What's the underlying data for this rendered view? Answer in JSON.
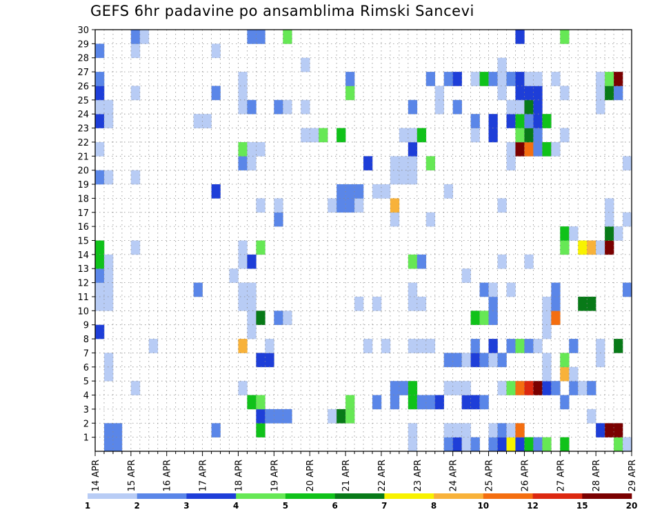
{
  "chart_data": {
    "type": "heatmap",
    "title": "GEFS 6hr padavine po ansamblima Rimski Sancevi",
    "xlabel": "",
    "ylabel": "",
    "x_tick_labels": [
      "14 APR",
      "15 APR",
      "16 APR",
      "17 APR",
      "18 APR",
      "19 APR",
      "20 APR",
      "21 APR",
      "22 APR",
      "23 APR",
      "24 APR",
      "25 APR",
      "26 APR",
      "27 APR",
      "28 APR",
      "29 APR"
    ],
    "y_tick_labels": [
      "1",
      "2",
      "3",
      "4",
      "5",
      "6",
      "7",
      "8",
      "9",
      "10",
      "11",
      "12",
      "13",
      "14",
      "15",
      "16",
      "17",
      "18",
      "19",
      "20",
      "21",
      "22",
      "23",
      "24",
      "25",
      "26",
      "27",
      "28",
      "29",
      "30"
    ],
    "xlim": [
      0,
      60
    ],
    "ylim": [
      0,
      30
    ],
    "grid": true,
    "legend_position": "bottom",
    "colorbar": {
      "colors": [
        "#b8ccf5",
        "#5a86e8",
        "#1e3ed8",
        "#66e855",
        "#10c21a",
        "#087a18",
        "#f8f200",
        "#f8b23a",
        "#f46e10",
        "#dc2810",
        "#7a0000"
      ],
      "labels": [
        "1",
        "2",
        "3",
        "4",
        "5",
        "6",
        "7",
        "8",
        "10",
        "12",
        "15",
        "20"
      ]
    },
    "cells": [
      [
        0,
        8,
        "3"
      ],
      [
        0,
        10,
        "1"
      ],
      [
        0,
        11,
        "1"
      ],
      [
        0,
        12,
        "2"
      ],
      [
        0,
        13,
        "5"
      ],
      [
        0,
        14,
        "5"
      ],
      [
        0,
        19,
        "2"
      ],
      [
        0,
        21,
        "1"
      ],
      [
        0,
        23,
        "3"
      ],
      [
        0,
        24,
        "1"
      ],
      [
        0,
        25,
        "3"
      ],
      [
        0,
        26,
        "2"
      ],
      [
        0,
        28,
        "2"
      ],
      [
        1,
        0,
        "2"
      ],
      [
        1,
        1,
        "2"
      ],
      [
        1,
        5,
        "1"
      ],
      [
        1,
        6,
        "1"
      ],
      [
        1,
        10,
        "1"
      ],
      [
        1,
        11,
        "1"
      ],
      [
        1,
        12,
        "1"
      ],
      [
        1,
        13,
        "1"
      ],
      [
        1,
        19,
        "1"
      ],
      [
        1,
        23,
        "1"
      ],
      [
        1,
        24,
        "1"
      ],
      [
        2,
        0,
        "2"
      ],
      [
        2,
        1,
        "2"
      ],
      [
        4,
        4,
        "1"
      ],
      [
        4,
        14,
        "1"
      ],
      [
        4,
        19,
        "1"
      ],
      [
        4,
        25,
        "1"
      ],
      [
        4,
        28,
        "1"
      ],
      [
        4,
        29,
        "2"
      ],
      [
        5,
        29,
        "1"
      ],
      [
        6,
        7,
        "1"
      ],
      [
        11,
        11,
        "2"
      ],
      [
        11,
        23,
        "1"
      ],
      [
        12,
        23,
        "1"
      ],
      [
        13,
        1,
        "2"
      ],
      [
        13,
        18,
        "3"
      ],
      [
        13,
        25,
        "2"
      ],
      [
        13,
        28,
        "1"
      ],
      [
        15,
        12,
        "1"
      ],
      [
        16,
        4,
        "1"
      ],
      [
        16,
        7,
        "8"
      ],
      [
        16,
        10,
        "1"
      ],
      [
        16,
        11,
        "1"
      ],
      [
        16,
        13,
        "1"
      ],
      [
        16,
        14,
        "1"
      ],
      [
        16,
        20,
        "2"
      ],
      [
        16,
        21,
        "4"
      ],
      [
        16,
        24,
        "1"
      ],
      [
        16,
        25,
        "1"
      ],
      [
        16,
        26,
        "1"
      ],
      [
        17,
        3,
        "5"
      ],
      [
        17,
        8,
        "1"
      ],
      [
        17,
        9,
        "1"
      ],
      [
        17,
        10,
        "1"
      ],
      [
        17,
        11,
        "1"
      ],
      [
        17,
        13,
        "3"
      ],
      [
        17,
        20,
        "1"
      ],
      [
        17,
        21,
        "1"
      ],
      [
        17,
        24,
        "2"
      ],
      [
        17,
        29,
        "2"
      ],
      [
        18,
        1,
        "5"
      ],
      [
        18,
        2,
        "3"
      ],
      [
        18,
        3,
        "4"
      ],
      [
        18,
        6,
        "3"
      ],
      [
        18,
        9,
        "6"
      ],
      [
        18,
        14,
        "4"
      ],
      [
        18,
        17,
        "1"
      ],
      [
        18,
        21,
        "1"
      ],
      [
        18,
        29,
        "2"
      ],
      [
        19,
        2,
        "2"
      ],
      [
        19,
        6,
        "3"
      ],
      [
        19,
        7,
        "1"
      ],
      [
        20,
        2,
        "2"
      ],
      [
        20,
        9,
        "2"
      ],
      [
        20,
        16,
        "2"
      ],
      [
        20,
        17,
        "1"
      ],
      [
        20,
        24,
        "2"
      ],
      [
        21,
        2,
        "2"
      ],
      [
        21,
        9,
        "1"
      ],
      [
        21,
        24,
        "1"
      ],
      [
        21,
        29,
        "4"
      ],
      [
        23,
        22,
        "1"
      ],
      [
        23,
        24,
        "1"
      ],
      [
        23,
        27,
        "1"
      ],
      [
        24,
        22,
        "1"
      ],
      [
        25,
        22,
        "4"
      ],
      [
        26,
        2,
        "1"
      ],
      [
        26,
        17,
        "1"
      ],
      [
        27,
        2,
        "6"
      ],
      [
        27,
        17,
        "2"
      ],
      [
        27,
        18,
        "2"
      ],
      [
        27,
        22,
        "5"
      ],
      [
        28,
        2,
        "4"
      ],
      [
        28,
        3,
        "4"
      ],
      [
        28,
        17,
        "2"
      ],
      [
        28,
        18,
        "2"
      ],
      [
        28,
        25,
        "4"
      ],
      [
        28,
        26,
        "2"
      ],
      [
        29,
        10,
        "1"
      ],
      [
        29,
        17,
        "1"
      ],
      [
        29,
        18,
        "2"
      ],
      [
        30,
        7,
        "1"
      ],
      [
        30,
        20,
        "3"
      ],
      [
        31,
        3,
        "2"
      ],
      [
        31,
        10,
        "1"
      ],
      [
        31,
        18,
        "1"
      ],
      [
        32,
        7,
        "1"
      ],
      [
        32,
        18,
        "1"
      ],
      [
        33,
        3,
        "2"
      ],
      [
        33,
        4,
        "2"
      ],
      [
        33,
        16,
        "1"
      ],
      [
        33,
        17,
        "8"
      ],
      [
        33,
        19,
        "1"
      ],
      [
        33,
        20,
        "1"
      ],
      [
        34,
        4,
        "2"
      ],
      [
        34,
        19,
        "1"
      ],
      [
        34,
        20,
        "1"
      ],
      [
        34,
        22,
        "1"
      ],
      [
        35,
        0,
        "1"
      ],
      [
        35,
        1,
        "1"
      ],
      [
        35,
        3,
        "5"
      ],
      [
        35,
        4,
        "5"
      ],
      [
        35,
        7,
        "1"
      ],
      [
        35,
        10,
        "1"
      ],
      [
        35,
        11,
        "1"
      ],
      [
        35,
        13,
        "4"
      ],
      [
        35,
        19,
        "1"
      ],
      [
        35,
        20,
        "1"
      ],
      [
        35,
        21,
        "3"
      ],
      [
        35,
        22,
        "1"
      ],
      [
        35,
        24,
        "2"
      ],
      [
        36,
        3,
        "2"
      ],
      [
        36,
        7,
        "1"
      ],
      [
        36,
        10,
        "1"
      ],
      [
        36,
        13,
        "2"
      ],
      [
        36,
        22,
        "5"
      ],
      [
        37,
        3,
        "2"
      ],
      [
        37,
        7,
        "1"
      ],
      [
        37,
        16,
        "1"
      ],
      [
        37,
        20,
        "4"
      ],
      [
        37,
        26,
        "2"
      ],
      [
        38,
        3,
        "3"
      ],
      [
        38,
        24,
        "1"
      ],
      [
        38,
        25,
        "1"
      ],
      [
        39,
        0,
        "2"
      ],
      [
        39,
        1,
        "1"
      ],
      [
        39,
        4,
        "1"
      ],
      [
        39,
        6,
        "2"
      ],
      [
        39,
        18,
        "1"
      ],
      [
        39,
        26,
        "2"
      ],
      [
        40,
        0,
        "3"
      ],
      [
        40,
        1,
        "1"
      ],
      [
        40,
        4,
        "1"
      ],
      [
        40,
        6,
        "2"
      ],
      [
        40,
        24,
        "2"
      ],
      [
        40,
        26,
        "3"
      ],
      [
        41,
        0,
        "1"
      ],
      [
        41,
        1,
        "1"
      ],
      [
        41,
        3,
        "3"
      ],
      [
        41,
        4,
        "1"
      ],
      [
        41,
        6,
        "1"
      ],
      [
        41,
        12,
        "1"
      ],
      [
        42,
        0,
        "2"
      ],
      [
        42,
        3,
        "3"
      ],
      [
        42,
        6,
        "3"
      ],
      [
        42,
        7,
        "2"
      ],
      [
        42,
        9,
        "5"
      ],
      [
        42,
        22,
        "1"
      ],
      [
        42,
        23,
        "2"
      ],
      [
        42,
        26,
        "1"
      ],
      [
        43,
        3,
        "2"
      ],
      [
        43,
        6,
        "2"
      ],
      [
        43,
        9,
        "4"
      ],
      [
        43,
        11,
        "2"
      ],
      [
        43,
        26,
        "5"
      ],
      [
        44,
        0,
        "2"
      ],
      [
        44,
        1,
        "1"
      ],
      [
        44,
        6,
        "1"
      ],
      [
        44,
        7,
        "3"
      ],
      [
        44,
        9,
        "2"
      ],
      [
        44,
        10,
        "2"
      ],
      [
        44,
        11,
        "1"
      ],
      [
        44,
        22,
        "3"
      ],
      [
        44,
        23,
        "3"
      ],
      [
        44,
        26,
        "2"
      ],
      [
        45,
        0,
        "3"
      ],
      [
        45,
        1,
        "2"
      ],
      [
        45,
        4,
        "1"
      ],
      [
        45,
        6,
        "2"
      ],
      [
        45,
        13,
        "1"
      ],
      [
        45,
        17,
        "1"
      ],
      [
        45,
        25,
        "1"
      ],
      [
        45,
        26,
        "1"
      ],
      [
        45,
        27,
        "1"
      ],
      [
        46,
        0,
        "7"
      ],
      [
        46,
        1,
        "1"
      ],
      [
        46,
        4,
        "4"
      ],
      [
        46,
        7,
        "2"
      ],
      [
        46,
        11,
        "1"
      ],
      [
        46,
        20,
        "1"
      ],
      [
        46,
        21,
        "1"
      ],
      [
        46,
        23,
        "3"
      ],
      [
        46,
        24,
        "1"
      ],
      [
        46,
        26,
        "2"
      ],
      [
        47,
        0,
        "3"
      ],
      [
        47,
        1,
        "10"
      ],
      [
        47,
        4,
        "10"
      ],
      [
        47,
        7,
        "4"
      ],
      [
        47,
        21,
        "20"
      ],
      [
        47,
        22,
        "4"
      ],
      [
        47,
        23,
        "5"
      ],
      [
        47,
        24,
        "1"
      ],
      [
        47,
        25,
        "3"
      ],
      [
        47,
        26,
        "3"
      ],
      [
        47,
        29,
        "3"
      ],
      [
        48,
        0,
        "5"
      ],
      [
        48,
        4,
        "12"
      ],
      [
        48,
        7,
        "2"
      ],
      [
        48,
        13,
        "1"
      ],
      [
        48,
        21,
        "10"
      ],
      [
        48,
        22,
        "6"
      ],
      [
        48,
        23,
        "2"
      ],
      [
        48,
        24,
        "6"
      ],
      [
        48,
        25,
        "3"
      ],
      [
        48,
        26,
        "1"
      ],
      [
        49,
        0,
        "2"
      ],
      [
        49,
        4,
        "20"
      ],
      [
        49,
        7,
        "1"
      ],
      [
        49,
        21,
        "2"
      ],
      [
        49,
        22,
        "2"
      ],
      [
        49,
        23,
        "3"
      ],
      [
        49,
        24,
        "3"
      ],
      [
        49,
        25,
        "3"
      ],
      [
        49,
        26,
        "1"
      ],
      [
        50,
        0,
        "4"
      ],
      [
        50,
        4,
        "3"
      ],
      [
        50,
        5,
        "1"
      ],
      [
        50,
        6,
        "1"
      ],
      [
        50,
        8,
        "1"
      ],
      [
        50,
        9,
        "1"
      ],
      [
        50,
        10,
        "1"
      ],
      [
        50,
        21,
        "5"
      ],
      [
        50,
        23,
        "5"
      ],
      [
        51,
        4,
        "2"
      ],
      [
        51,
        9,
        "10"
      ],
      [
        51,
        10,
        "2"
      ],
      [
        51,
        11,
        "2"
      ],
      [
        51,
        21,
        "1"
      ],
      [
        51,
        26,
        "1"
      ],
      [
        52,
        0,
        "5"
      ],
      [
        52,
        3,
        "2"
      ],
      [
        52,
        5,
        "8"
      ],
      [
        52,
        6,
        "4"
      ],
      [
        52,
        14,
        "4"
      ],
      [
        52,
        15,
        "5"
      ],
      [
        52,
        22,
        "1"
      ],
      [
        52,
        25,
        "1"
      ],
      [
        52,
        29,
        "4"
      ],
      [
        53,
        4,
        "2"
      ],
      [
        53,
        5,
        "1"
      ],
      [
        53,
        7,
        "2"
      ],
      [
        53,
        15,
        "1"
      ],
      [
        54,
        4,
        "1"
      ],
      [
        54,
        10,
        "6"
      ],
      [
        54,
        14,
        "7"
      ],
      [
        55,
        2,
        "1"
      ],
      [
        55,
        4,
        "2"
      ],
      [
        55,
        10,
        "6"
      ],
      [
        55,
        14,
        "8"
      ],
      [
        56,
        1,
        "3"
      ],
      [
        56,
        6,
        "1"
      ],
      [
        56,
        7,
        "1"
      ],
      [
        56,
        14,
        "1"
      ],
      [
        56,
        24,
        "1"
      ],
      [
        56,
        25,
        "1"
      ],
      [
        56,
        26,
        "1"
      ],
      [
        57,
        1,
        "15"
      ],
      [
        57,
        14,
        "20"
      ],
      [
        57,
        15,
        "6"
      ],
      [
        57,
        16,
        "1"
      ],
      [
        57,
        17,
        "1"
      ],
      [
        57,
        25,
        "6"
      ],
      [
        57,
        26,
        "4"
      ],
      [
        58,
        0,
        "4"
      ],
      [
        58,
        1,
        "20"
      ],
      [
        58,
        7,
        "6"
      ],
      [
        58,
        15,
        "1"
      ],
      [
        58,
        25,
        "2"
      ],
      [
        58,
        26,
        "15"
      ],
      [
        59,
        0,
        "1"
      ],
      [
        59,
        11,
        "2"
      ],
      [
        59,
        16,
        "1"
      ],
      [
        59,
        20,
        "1"
      ]
    ]
  }
}
